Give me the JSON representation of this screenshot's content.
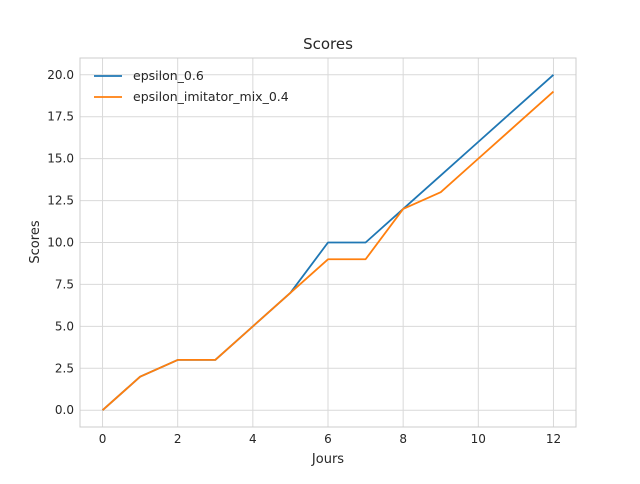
{
  "chart_data": {
    "type": "line",
    "title": "Scores",
    "xlabel": "Jours",
    "ylabel": "Scores",
    "x": [
      0,
      1,
      2,
      3,
      4,
      5,
      6,
      7,
      8,
      9,
      10,
      11,
      12
    ],
    "series": [
      {
        "name": "epsilon_0.6",
        "color": "#1f77b4",
        "values": [
          0,
          2,
          3,
          3,
          5,
          7,
          10,
          10,
          12,
          14,
          16,
          18,
          20
        ]
      },
      {
        "name": "epsilon_imitator_mix_0.4",
        "color": "#ff7f0e",
        "values": [
          0,
          2,
          3,
          3,
          5,
          7,
          9,
          9,
          12,
          13,
          15,
          17,
          19
        ]
      }
    ],
    "xlim": [
      -0.6,
      12.6
    ],
    "ylim": [
      -1.0,
      21.0
    ],
    "xticks": [
      0,
      2,
      4,
      6,
      8,
      10,
      12
    ],
    "xtick_labels": [
      "0",
      "2",
      "4",
      "6",
      "8",
      "10",
      "12"
    ],
    "yticks": [
      0,
      2.5,
      5,
      7.5,
      10,
      12.5,
      15,
      17.5,
      20
    ],
    "ytick_labels": [
      "0.0",
      "2.5",
      "5.0",
      "7.5",
      "10.0",
      "12.5",
      "15.0",
      "17.5",
      "20.0"
    ],
    "grid": true,
    "legend_position": "top-left"
  }
}
